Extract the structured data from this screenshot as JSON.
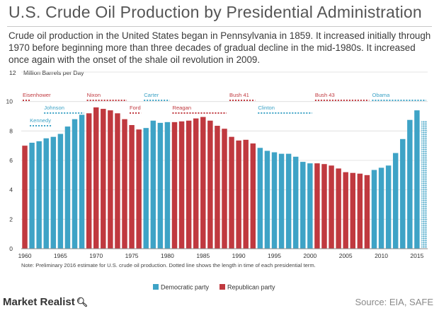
{
  "title": "U.S. Crude Oil Production by Presidential Administration",
  "subtitle": "Crude oil production in the United States began in Pennsylvania in 1859. It increased initially through 1970 before beginning more than three decades of gradual decline in the mid-1980s. It increased once again with the onset of the shale oil revolution in 2009.",
  "note": "Note: Preliminary 2016 estimate for U.S. crude oil production. Dotted line shows the length in time of each presidential term.",
  "footer": {
    "logo": "Market Realist",
    "source": "Source: EIA, SAFE"
  },
  "colors": {
    "democratic": "#3ea3c6",
    "republican": "#c0393f"
  },
  "chart_data": {
    "type": "bar",
    "ylabel": "Million Barrels per Day",
    "ylim": [
      0,
      12
    ],
    "yticks": [
      0,
      2,
      4,
      6,
      8,
      10,
      12
    ],
    "xticks": [
      1960,
      1965,
      1970,
      1975,
      1980,
      1985,
      1990,
      1995,
      2000,
      2005,
      2010,
      2015
    ],
    "legend": {
      "position": "bottom",
      "items": [
        {
          "party": "democratic",
          "label": "Democratic party"
        },
        {
          "party": "republican",
          "label": "Republican party"
        }
      ]
    },
    "bars": [
      {
        "year": 1960,
        "value": 7.0,
        "party": "republican"
      },
      {
        "year": 1961,
        "value": 7.2,
        "party": "democratic"
      },
      {
        "year": 1962,
        "value": 7.3,
        "party": "democratic"
      },
      {
        "year": 1963,
        "value": 7.5,
        "party": "democratic"
      },
      {
        "year": 1964,
        "value": 7.6,
        "party": "democratic"
      },
      {
        "year": 1965,
        "value": 7.8,
        "party": "democratic"
      },
      {
        "year": 1966,
        "value": 8.3,
        "party": "democratic"
      },
      {
        "year": 1967,
        "value": 8.8,
        "party": "democratic"
      },
      {
        "year": 1968,
        "value": 9.1,
        "party": "democratic"
      },
      {
        "year": 1969,
        "value": 9.2,
        "party": "republican"
      },
      {
        "year": 1970,
        "value": 9.6,
        "party": "republican"
      },
      {
        "year": 1971,
        "value": 9.5,
        "party": "republican"
      },
      {
        "year": 1972,
        "value": 9.4,
        "party": "republican"
      },
      {
        "year": 1973,
        "value": 9.2,
        "party": "republican"
      },
      {
        "year": 1974,
        "value": 8.8,
        "party": "republican"
      },
      {
        "year": 1975,
        "value": 8.4,
        "party": "republican"
      },
      {
        "year": 1976,
        "value": 8.1,
        "party": "republican"
      },
      {
        "year": 1977,
        "value": 8.2,
        "party": "democratic"
      },
      {
        "year": 1978,
        "value": 8.7,
        "party": "democratic"
      },
      {
        "year": 1979,
        "value": 8.55,
        "party": "democratic"
      },
      {
        "year": 1980,
        "value": 8.6,
        "party": "democratic"
      },
      {
        "year": 1981,
        "value": 8.6,
        "party": "republican"
      },
      {
        "year": 1982,
        "value": 8.65,
        "party": "republican"
      },
      {
        "year": 1983,
        "value": 8.7,
        "party": "republican"
      },
      {
        "year": 1984,
        "value": 8.85,
        "party": "republican"
      },
      {
        "year": 1985,
        "value": 8.95,
        "party": "republican"
      },
      {
        "year": 1986,
        "value": 8.7,
        "party": "republican"
      },
      {
        "year": 1987,
        "value": 8.35,
        "party": "republican"
      },
      {
        "year": 1988,
        "value": 8.15,
        "party": "republican"
      },
      {
        "year": 1989,
        "value": 7.6,
        "party": "republican"
      },
      {
        "year": 1990,
        "value": 7.35,
        "party": "republican"
      },
      {
        "year": 1991,
        "value": 7.4,
        "party": "republican"
      },
      {
        "year": 1992,
        "value": 7.15,
        "party": "republican"
      },
      {
        "year": 1993,
        "value": 6.85,
        "party": "democratic"
      },
      {
        "year": 1994,
        "value": 6.65,
        "party": "democratic"
      },
      {
        "year": 1995,
        "value": 6.55,
        "party": "democratic"
      },
      {
        "year": 1996,
        "value": 6.45,
        "party": "democratic"
      },
      {
        "year": 1997,
        "value": 6.45,
        "party": "democratic"
      },
      {
        "year": 1998,
        "value": 6.25,
        "party": "democratic"
      },
      {
        "year": 1999,
        "value": 5.9,
        "party": "democratic"
      },
      {
        "year": 2000,
        "value": 5.8,
        "party": "democratic"
      },
      {
        "year": 2001,
        "value": 5.8,
        "party": "republican"
      },
      {
        "year": 2002,
        "value": 5.75,
        "party": "republican"
      },
      {
        "year": 2003,
        "value": 5.65,
        "party": "republican"
      },
      {
        "year": 2004,
        "value": 5.45,
        "party": "republican"
      },
      {
        "year": 2005,
        "value": 5.2,
        "party": "republican"
      },
      {
        "year": 2006,
        "value": 5.15,
        "party": "republican"
      },
      {
        "year": 2007,
        "value": 5.1,
        "party": "republican"
      },
      {
        "year": 2008,
        "value": 5.0,
        "party": "republican"
      },
      {
        "year": 2009,
        "value": 5.35,
        "party": "democratic"
      },
      {
        "year": 2010,
        "value": 5.5,
        "party": "democratic"
      },
      {
        "year": 2011,
        "value": 5.65,
        "party": "democratic"
      },
      {
        "year": 2012,
        "value": 6.5,
        "party": "democratic"
      },
      {
        "year": 2013,
        "value": 7.45,
        "party": "democratic"
      },
      {
        "year": 2014,
        "value": 8.75,
        "party": "democratic"
      },
      {
        "year": 2015,
        "value": 9.4,
        "party": "democratic"
      },
      {
        "year": 2016,
        "value": 8.7,
        "party": "democratic",
        "preliminary": true
      }
    ],
    "presidents": [
      {
        "name": "Eisenhower",
        "party": "republican",
        "start": 1959.5,
        "end": 1961,
        "row": 0
      },
      {
        "name": "Kennedy",
        "party": "democratic",
        "start": 1960.5,
        "end": 1963.9,
        "row": 3
      },
      {
        "name": "Johnson",
        "party": "democratic",
        "start": 1962.5,
        "end": 1968.5,
        "row": 2
      },
      {
        "name": "Nixon",
        "party": "republican",
        "start": 1968.5,
        "end": 1974.5,
        "row": 0
      },
      {
        "name": "Ford",
        "party": "republican",
        "start": 1974.5,
        "end": 1976.5,
        "row": 2
      },
      {
        "name": "Carter",
        "party": "democratic",
        "start": 1976.5,
        "end": 1980.5,
        "row": 0
      },
      {
        "name": "Reagan",
        "party": "republican",
        "start": 1980.5,
        "end": 1988.5,
        "row": 2
      },
      {
        "name": "Bush 41",
        "party": "republican",
        "start": 1988.5,
        "end": 1992.5,
        "row": 0
      },
      {
        "name": "Clinton",
        "party": "democratic",
        "start": 1992.5,
        "end": 2000.5,
        "row": 2
      },
      {
        "name": "Bush 43",
        "party": "republican",
        "start": 2000.5,
        "end": 2008.5,
        "row": 0
      },
      {
        "name": "Obama",
        "party": "democratic",
        "start": 2008.5,
        "end": 2016.5,
        "row": 0
      }
    ]
  }
}
